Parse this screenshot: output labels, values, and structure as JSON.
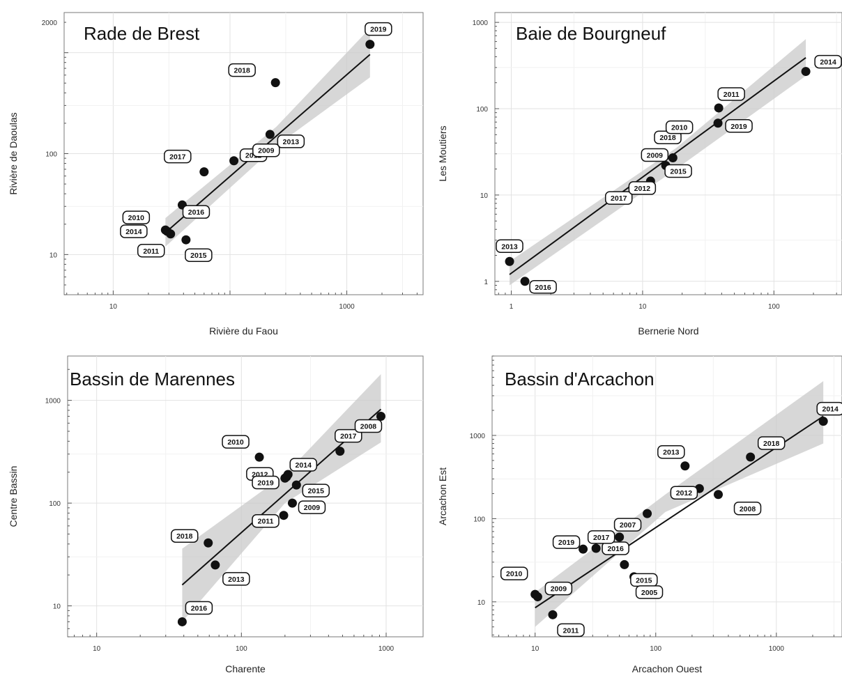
{
  "chart_data": [
    {
      "type": "scatter",
      "title": "Rade de Brest",
      "xlabel": "Rivière du Faou",
      "ylabel": "Rivière de Daoulas",
      "xscale": "log",
      "yscale": "log",
      "xlim": [
        3.8,
        4500
      ],
      "ylim": [
        4,
        2500
      ],
      "xticks": [
        10,
        1000
      ],
      "xtick_labels": [
        "10",
        "1000"
      ],
      "yticks": [
        10,
        100,
        2000
      ],
      "ytick_labels": [
        "10",
        "100",
        "2000"
      ],
      "grid": true,
      "points": [
        {
          "label": "2010",
          "x": 28,
          "y": 17.5
        },
        {
          "label": "2014",
          "x": 29,
          "y": 17
        },
        {
          "label": "2011",
          "x": 31,
          "y": 16
        },
        {
          "label": "2016",
          "x": 39,
          "y": 31
        },
        {
          "label": "2015",
          "x": 42,
          "y": 14
        },
        {
          "label": "2017",
          "x": 60,
          "y": 66
        },
        {
          "label": "2012",
          "x": 108,
          "y": 85
        },
        {
          "label": "2009",
          "x": 135,
          "y": 95
        },
        {
          "label": "2013",
          "x": 220,
          "y": 155
        },
        {
          "label": "2018",
          "x": 245,
          "y": 505
        },
        {
          "label": "2019",
          "x": 1580,
          "y": 1210
        }
      ],
      "fit": {
        "x": [
          28,
          1580
        ],
        "y": [
          16.5,
          960
        ]
      },
      "band": {
        "x": [
          28,
          250,
          1580
        ],
        "lower": [
          12,
          120,
          570
        ],
        "upper": [
          23,
          185,
          1750
        ]
      }
    },
    {
      "type": "scatter",
      "title": "Baie de Bourgneuf",
      "xlabel": "Bernerie Nord",
      "ylabel": "Les Moutiers",
      "xscale": "log",
      "yscale": "log",
      "xlim": [
        0.75,
        330
      ],
      "ylim": [
        0.7,
        1300
      ],
      "xticks": [
        1,
        10,
        100
      ],
      "xtick_labels": [
        "1",
        "10",
        "100"
      ],
      "yticks": [
        1,
        10,
        100,
        1000
      ],
      "ytick_labels": [
        "1",
        "10",
        "100",
        "1000"
      ],
      "grid": true,
      "points": [
        {
          "label": "2013",
          "x": 0.97,
          "y": 1.7
        },
        {
          "label": "2016",
          "x": 1.27,
          "y": 1.0
        },
        {
          "label": "2017",
          "x": 9.5,
          "y": 12
        },
        {
          "label": "2012",
          "x": 11.5,
          "y": 14.5
        },
        {
          "label": "2015",
          "x": 15,
          "y": 22
        },
        {
          "label": "2009",
          "x": 17,
          "y": 27
        },
        {
          "label": "2018",
          "x": 18,
          "y": 56
        },
        {
          "label": "2010",
          "x": 20.5,
          "y": 61
        },
        {
          "label": "2019",
          "x": 37.5,
          "y": 68
        },
        {
          "label": "2011",
          "x": 38,
          "y": 102
        },
        {
          "label": "2014",
          "x": 175,
          "y": 270
        }
      ],
      "fit": {
        "x": [
          0.97,
          175
        ],
        "y": [
          1.2,
          390
        ]
      },
      "band": {
        "x": [
          0.97,
          18,
          175
        ],
        "lower": [
          0.9,
          20,
          240
        ],
        "upper": [
          1.7,
          35,
          640
        ]
      }
    },
    {
      "type": "scatter",
      "title": "Bassin de Marennes",
      "xlabel": "Charente",
      "ylabel": "Centre Bassin",
      "xscale": "log",
      "yscale": "log",
      "xlim": [
        6.3,
        1800
      ],
      "ylim": [
        5,
        2700
      ],
      "xticks": [
        10,
        100,
        1000
      ],
      "xtick_labels": [
        "10",
        "100",
        "1000"
      ],
      "yticks": [
        10,
        100,
        1000
      ],
      "ytick_labels": [
        "10",
        "100",
        "1000"
      ],
      "grid": true,
      "points": [
        {
          "label": "2016",
          "x": 39,
          "y": 7
        },
        {
          "label": "2018",
          "x": 59,
          "y": 41
        },
        {
          "label": "2013",
          "x": 66,
          "y": 25
        },
        {
          "label": "2010",
          "x": 133,
          "y": 280
        },
        {
          "label": "2011",
          "x": 196,
          "y": 76
        },
        {
          "label": "2012",
          "x": 200,
          "y": 175
        },
        {
          "label": "2019",
          "x": 205,
          "y": 180
        },
        {
          "label": "2014",
          "x": 210,
          "y": 190
        },
        {
          "label": "2009",
          "x": 225,
          "y": 100
        },
        {
          "label": "2015",
          "x": 240,
          "y": 150
        },
        {
          "label": "2017",
          "x": 480,
          "y": 320
        },
        {
          "label": "2008",
          "x": 920,
          "y": 700
        }
      ],
      "fit": {
        "x": [
          39,
          920
        ],
        "y": [
          16,
          820
        ]
      },
      "band": {
        "x": [
          39,
          200,
          920
        ],
        "lower": [
          7,
          100,
          390
        ],
        "upper": [
          36,
          190,
          1800
        ]
      }
    },
    {
      "type": "scatter",
      "title": "Bassin d'Arcachon",
      "xlabel": "Arcachon Ouest",
      "ylabel": "Arcachon Est",
      "xscale": "log",
      "yscale": "log",
      "xlim": [
        4.4,
        3500
      ],
      "ylim": [
        3.8,
        9000
      ],
      "xticks": [
        10,
        100,
        1000
      ],
      "xtick_labels": [
        "10",
        "100",
        "1000"
      ],
      "yticks": [
        10,
        100,
        1000
      ],
      "ytick_labels": [
        "10",
        "100",
        "1000"
      ],
      "grid": true,
      "points": [
        {
          "label": "2010",
          "x": 10,
          "y": 12.3
        },
        {
          "label": "2009",
          "x": 10.5,
          "y": 11.5
        },
        {
          "label": "2011",
          "x": 14,
          "y": 7
        },
        {
          "label": "2019",
          "x": 25,
          "y": 43
        },
        {
          "label": "2016",
          "x": 32,
          "y": 44
        },
        {
          "label": "2017",
          "x": 50,
          "y": 60
        },
        {
          "label": "2015",
          "x": 55,
          "y": 28
        },
        {
          "label": "2005",
          "x": 66,
          "y": 20
        },
        {
          "label": "2007",
          "x": 85,
          "y": 115
        },
        {
          "label": "2013",
          "x": 175,
          "y": 430
        },
        {
          "label": "2012",
          "x": 230,
          "y": 230
        },
        {
          "label": "2008",
          "x": 330,
          "y": 195
        },
        {
          "label": "2018",
          "x": 610,
          "y": 550
        },
        {
          "label": "2014",
          "x": 2450,
          "y": 1480
        }
      ],
      "fit": {
        "x": [
          10,
          2450
        ],
        "y": [
          8.5,
          1700
        ]
      },
      "band": {
        "x": [
          10,
          120,
          2450
        ],
        "lower": [
          5,
          120,
          800
        ],
        "upper": [
          13,
          195,
          4500
        ]
      }
    }
  ]
}
